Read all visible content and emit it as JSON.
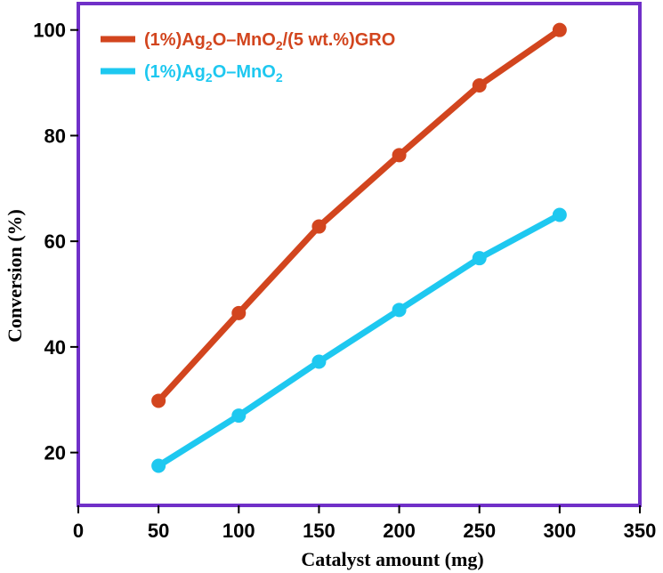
{
  "chart_data": {
    "type": "line",
    "xlabel": "Catalyst amount (mg)",
    "ylabel": "Conversion (%)",
    "xlim": [
      0,
      350
    ],
    "ylim": [
      10,
      105
    ],
    "xticks": [
      0,
      50,
      100,
      150,
      200,
      250,
      300,
      350
    ],
    "yticks": [
      20,
      40,
      60,
      80,
      100
    ],
    "x": [
      50,
      100,
      150,
      200,
      250,
      300
    ],
    "grid": false,
    "legend_position": "top-left",
    "frame_color": "#7030c8",
    "series": [
      {
        "name_parts": [
          "(1%)Ag",
          "2",
          "O–MnO",
          "2",
          "/(5 wt.%)GRO"
        ],
        "color": "#d2451e",
        "values": [
          29.8,
          46.4,
          62.8,
          76.3,
          89.5,
          100
        ]
      },
      {
        "name_parts": [
          "(1%)Ag",
          "2",
          "O–MnO",
          "2"
        ],
        "color": "#1ec8f0",
        "values": [
          17.5,
          27,
          37.2,
          47,
          56.8,
          65
        ]
      }
    ]
  }
}
